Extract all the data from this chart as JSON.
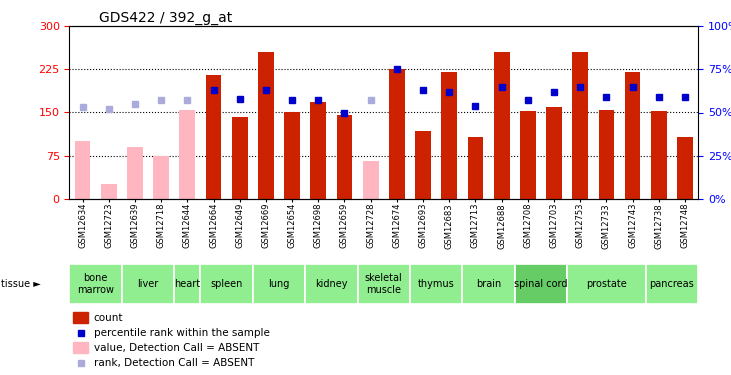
{
  "title": "GDS422 / 392_g_at",
  "samples": [
    "GSM12634",
    "GSM12723",
    "GSM12639",
    "GSM12718",
    "GSM12644",
    "GSM12664",
    "GSM12649",
    "GSM12669",
    "GSM12654",
    "GSM12698",
    "GSM12659",
    "GSM12728",
    "GSM12674",
    "GSM12693",
    "GSM12683",
    "GSM12713",
    "GSM12688",
    "GSM12708",
    "GSM12703",
    "GSM12753",
    "GSM12733",
    "GSM12743",
    "GSM12738",
    "GSM12748"
  ],
  "count_values": [
    100,
    25,
    90,
    75,
    155,
    215,
    143,
    255,
    150,
    168,
    145,
    65,
    225,
    118,
    220,
    107,
    255,
    152,
    160,
    255,
    155,
    220,
    152,
    107
  ],
  "count_absent": [
    true,
    true,
    true,
    true,
    true,
    false,
    false,
    false,
    false,
    false,
    false,
    true,
    false,
    false,
    false,
    false,
    false,
    false,
    false,
    false,
    false,
    false,
    false,
    false
  ],
  "percentile_values": [
    53,
    52,
    55,
    57,
    57,
    63,
    58,
    63,
    57,
    57,
    50,
    57,
    75,
    63,
    62,
    54,
    65,
    57,
    62,
    65,
    59,
    65,
    59,
    59
  ],
  "percentile_absent": [
    true,
    true,
    true,
    true,
    true,
    false,
    false,
    false,
    false,
    false,
    false,
    true,
    false,
    false,
    false,
    false,
    false,
    false,
    false,
    false,
    false,
    false,
    false,
    false
  ],
  "tissues": [
    {
      "name": "bone\nmarrow",
      "start": 0,
      "end": 2,
      "color": "#90EE90"
    },
    {
      "name": "liver",
      "start": 2,
      "end": 4,
      "color": "#90EE90"
    },
    {
      "name": "heart",
      "start": 4,
      "end": 5,
      "color": "#90EE90"
    },
    {
      "name": "spleen",
      "start": 5,
      "end": 7,
      "color": "#90EE90"
    },
    {
      "name": "lung",
      "start": 7,
      "end": 9,
      "color": "#90EE90"
    },
    {
      "name": "kidney",
      "start": 9,
      "end": 11,
      "color": "#90EE90"
    },
    {
      "name": "skeletal\nmuscle",
      "start": 11,
      "end": 13,
      "color": "#90EE90"
    },
    {
      "name": "thymus",
      "start": 13,
      "end": 15,
      "color": "#90EE90"
    },
    {
      "name": "brain",
      "start": 15,
      "end": 17,
      "color": "#90EE90"
    },
    {
      "name": "spinal cord",
      "start": 17,
      "end": 19,
      "color": "#66CC66"
    },
    {
      "name": "prostate",
      "start": 19,
      "end": 22,
      "color": "#90EE90"
    },
    {
      "name": "pancreas",
      "start": 22,
      "end": 24,
      "color": "#90EE90"
    }
  ],
  "bar_color_present": "#CC2200",
  "bar_color_absent": "#FFB6C1",
  "dot_color_present": "#0000CC",
  "dot_color_absent": "#AAAADD",
  "ylim_left": [
    0,
    300
  ],
  "ylim_right": [
    0,
    100
  ],
  "yticks_left": [
    0,
    75,
    150,
    225,
    300
  ],
  "yticks_right": [
    0,
    25,
    50,
    75,
    100
  ],
  "ytick_labels_left": [
    "0",
    "75",
    "150",
    "225",
    "300"
  ],
  "ytick_labels_right": [
    "0%",
    "25%",
    "50%",
    "75%",
    "100%"
  ],
  "background_color": "#ffffff",
  "gsm_fontsize": 6.0,
  "tissue_fontsize": 7.0,
  "bar_width": 0.6,
  "legend_items": [
    {
      "color": "#CC2200",
      "label": "count",
      "is_bar": true
    },
    {
      "color": "#0000CC",
      "label": "percentile rank within the sample",
      "is_bar": false
    },
    {
      "color": "#FFB6C1",
      "label": "value, Detection Call = ABSENT",
      "is_bar": true
    },
    {
      "color": "#AAAADD",
      "label": "rank, Detection Call = ABSENT",
      "is_bar": false
    }
  ]
}
